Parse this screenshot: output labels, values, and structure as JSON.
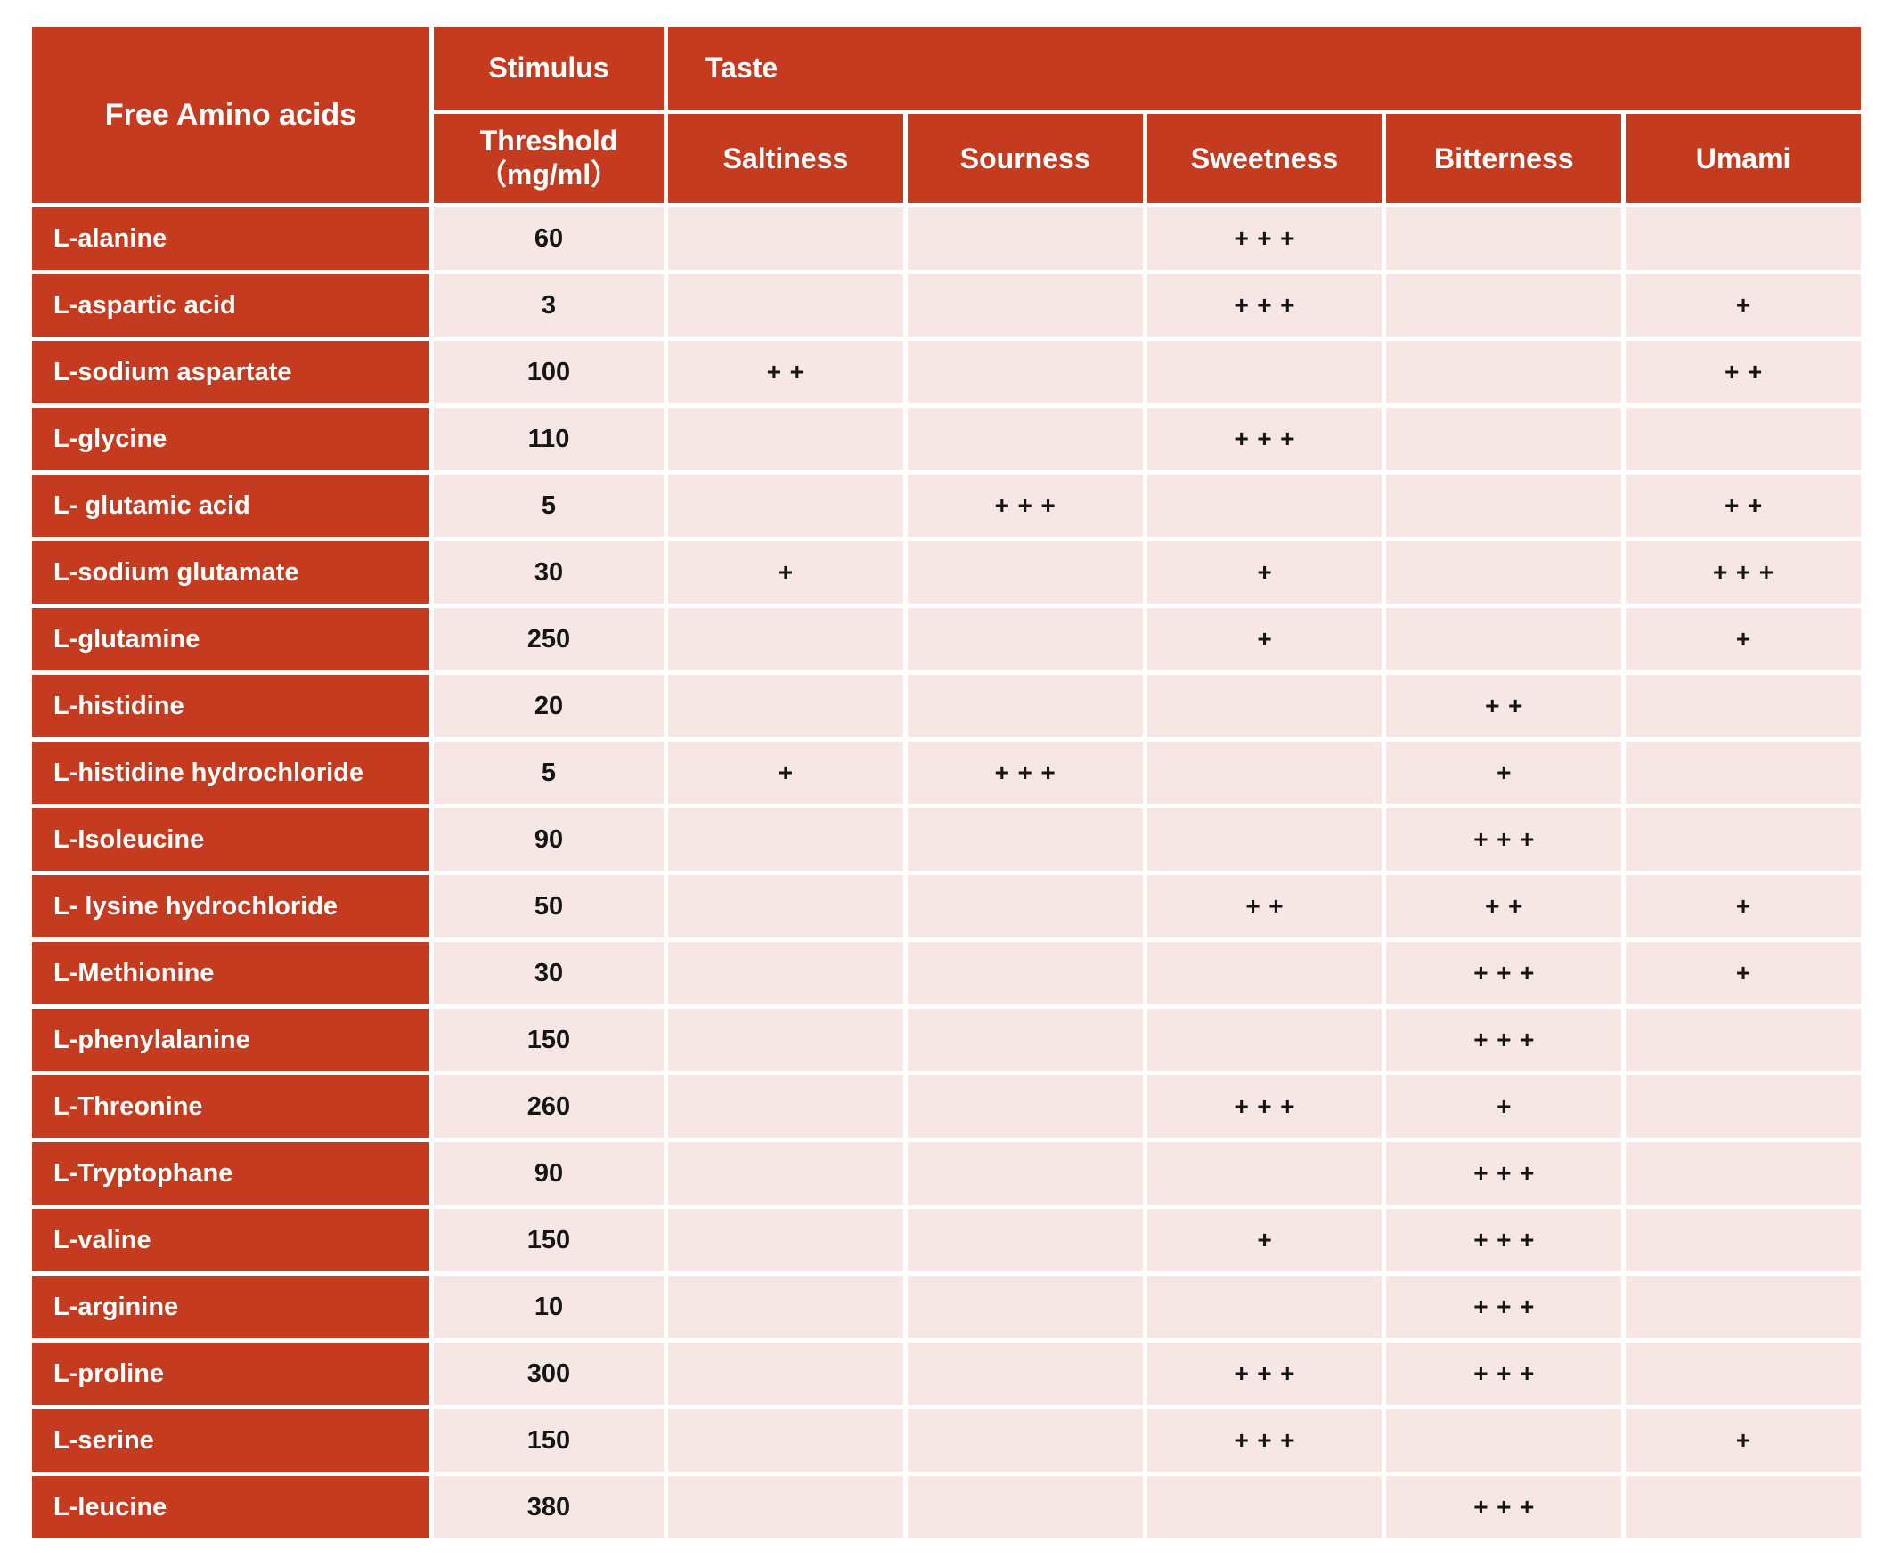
{
  "table": {
    "corner_header": "Free Amino acids",
    "stimulus_header": "Stimulus",
    "threshold_header_line1": "Threshold",
    "threshold_header_line2": "（mg/ml）",
    "taste_header": "Taste",
    "taste_columns": [
      "Saltiness",
      "Sourness",
      "Sweetness",
      "Bitterness",
      "Umami"
    ],
    "rows": [
      {
        "name": "L-alanine",
        "threshold": "60",
        "saltiness": "",
        "sourness": "",
        "sweetness": "+++",
        "bitterness": "",
        "umami": ""
      },
      {
        "name": "L-aspartic acid",
        "threshold": "3",
        "saltiness": "",
        "sourness": "",
        "sweetness": "+++",
        "bitterness": "",
        "umami": "+"
      },
      {
        "name": "L-sodium aspartate",
        "threshold": "100",
        "saltiness": "++",
        "sourness": "",
        "sweetness": "",
        "bitterness": "",
        "umami": "++"
      },
      {
        "name": "L-glycine",
        "threshold": "110",
        "saltiness": "",
        "sourness": "",
        "sweetness": "+++",
        "bitterness": "",
        "umami": ""
      },
      {
        "name": "L- glutamic acid",
        "threshold": "5",
        "saltiness": "",
        "sourness": "+++",
        "sweetness": "",
        "bitterness": "",
        "umami": "++"
      },
      {
        "name": "L-sodium glutamate",
        "threshold": "30",
        "saltiness": "+",
        "sourness": "",
        "sweetness": "+",
        "bitterness": "",
        "umami": "+++"
      },
      {
        "name": "L-glutamine",
        "threshold": "250",
        "saltiness": "",
        "sourness": "",
        "sweetness": "+",
        "bitterness": "",
        "umami": "+"
      },
      {
        "name": "L-histidine",
        "threshold": "20",
        "saltiness": "",
        "sourness": "",
        "sweetness": "",
        "bitterness": "++",
        "umami": ""
      },
      {
        "name": "L-histidine hydrochloride",
        "threshold": "5",
        "saltiness": "+",
        "sourness": "+++",
        "sweetness": "",
        "bitterness": "+",
        "umami": ""
      },
      {
        "name": "L-Isoleucine",
        "threshold": "90",
        "saltiness": "",
        "sourness": "",
        "sweetness": "",
        "bitterness": "+++",
        "umami": ""
      },
      {
        "name": "L- lysine hydrochloride",
        "threshold": "50",
        "saltiness": "",
        "sourness": "",
        "sweetness": "++",
        "bitterness": "++",
        "umami": "+"
      },
      {
        "name": "L-Methionine",
        "threshold": "30",
        "saltiness": "",
        "sourness": "",
        "sweetness": "",
        "bitterness": "+++",
        "umami": "+"
      },
      {
        "name": "L-phenylalanine",
        "threshold": "150",
        "saltiness": "",
        "sourness": "",
        "sweetness": "",
        "bitterness": "+++",
        "umami": ""
      },
      {
        "name": "L-Threonine",
        "threshold": "260",
        "saltiness": "",
        "sourness": "",
        "sweetness": "+++",
        "bitterness": "+",
        "umami": ""
      },
      {
        "name": "L-Tryptophane",
        "threshold": "90",
        "saltiness": "",
        "sourness": "",
        "sweetness": "",
        "bitterness": "+++",
        "umami": ""
      },
      {
        "name": "L-valine",
        "threshold": "150",
        "saltiness": "",
        "sourness": "",
        "sweetness": "+",
        "bitterness": "+++",
        "umami": ""
      },
      {
        "name": "L-arginine",
        "threshold": "10",
        "saltiness": "",
        "sourness": "",
        "sweetness": "",
        "bitterness": "+++",
        "umami": ""
      },
      {
        "name": "L-proline",
        "threshold": "300",
        "saltiness": "",
        "sourness": "",
        "sweetness": "+++",
        "bitterness": "+++",
        "umami": ""
      },
      {
        "name": "L-serine",
        "threshold": "150",
        "saltiness": "",
        "sourness": "",
        "sweetness": "+++",
        "bitterness": "",
        "umami": "+"
      },
      {
        "name": "L-leucine",
        "threshold": "380",
        "saltiness": "",
        "sourness": "",
        "sweetness": "",
        "bitterness": "+++",
        "umami": ""
      }
    ]
  },
  "colors": {
    "header_red": "#C43B1F",
    "cell_pink": "#F7E7E4",
    "grid_white": "#FFFFFF",
    "text_dark": "#151515",
    "text_white": "#FFFFFF"
  }
}
